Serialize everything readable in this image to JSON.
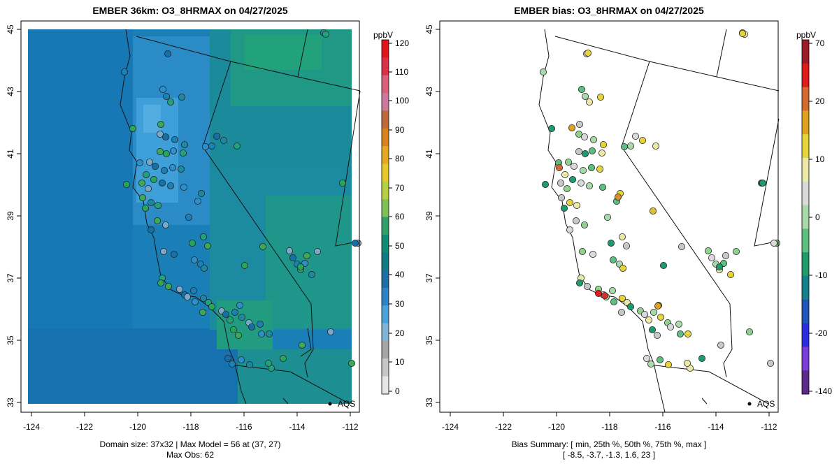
{
  "panels": [
    {
      "title": "EMBER 36km: O3_8HRMAX on 04/27/2025",
      "colorbar": {
        "unit": "ppbV",
        "labels": [
          "120",
          "110",
          "100",
          "90",
          "80",
          "70",
          "60",
          "50",
          "40",
          "30",
          "20",
          "10",
          "0"
        ],
        "colors": [
          "#e3131b",
          "#dc3046",
          "#d9607a",
          "#cc7a9b",
          "#bf6a3a",
          "#d9821e",
          "#e4a821",
          "#e6c829",
          "#b9cf43",
          "#7fc057",
          "#33a06a",
          "#128b76",
          "#127a84",
          "#1f6ea6",
          "#2f82c4",
          "#4aa2db",
          "#7fb4d7",
          "#a6a6a6",
          "#c7c7c7",
          "#e6e6e6"
        ]
      },
      "footer": [
        "Domain size: 37x32 | Max Model = 56 at (37, 27)",
        "Max Obs: 62"
      ],
      "aqs_label": "AQS"
    },
    {
      "title": "EMBER bias: O3_8HRMAX on 04/27/2025",
      "colorbar": {
        "unit": "ppbV",
        "labels": [
          "70",
          "20",
          "10",
          "0",
          "-10",
          "-20",
          "-140"
        ],
        "colors": [
          "#9c1c2a",
          "#e01b1b",
          "#d56a2e",
          "#e0a020",
          "#e6d53a",
          "#ece8a6",
          "#d9d9d9",
          "#a9d9a9",
          "#5cbf7f",
          "#1f9a6a",
          "#15808a",
          "#1f55b8",
          "#2a2de0",
          "#7a3bd8",
          "#5b2a8a"
        ]
      },
      "footer": [
        "Bias Summary: [ min, 25th %, 50th %, 75th %, max ]",
        "[ -8.5,   -3.7,   -1.3,   1.6,   23 ]"
      ],
      "aqs_label": "AQS"
    }
  ],
  "axes": {
    "x_ticks": [
      "-124",
      "-122",
      "-120",
      "-118",
      "-116",
      "-114",
      "-112"
    ],
    "y_ticks": [
      "45",
      "43",
      "41",
      "39",
      "37",
      "35",
      "33"
    ]
  }
}
